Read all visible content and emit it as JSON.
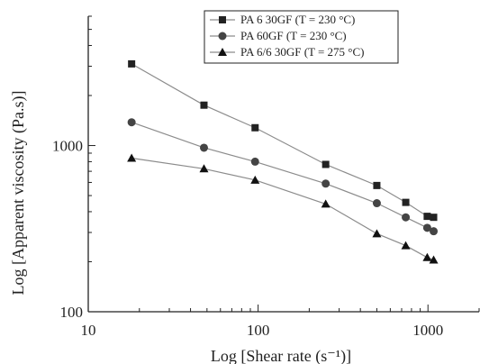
{
  "chart_data": {
    "type": "line",
    "xlabel": "Log [Shear rate (s⁻¹)]",
    "ylabel": "Log [Apparent viscosity (Pa.s)]",
    "x_scale": "log",
    "y_scale": "log",
    "xlim": [
      10,
      2000
    ],
    "ylim": [
      100,
      6000
    ],
    "x_ticks": [
      10,
      100,
      1000
    ],
    "x_tick_labels": [
      "10",
      "100",
      "1000"
    ],
    "y_ticks": [
      100,
      1000
    ],
    "y_tick_labels": [
      "100",
      "1000"
    ],
    "grid": false,
    "legend_position": "top-right",
    "series": [
      {
        "name": "PA 6 30GF (T = 230 °C)",
        "marker": "square",
        "color": "#222222",
        "x": [
          18,
          48,
          96,
          250,
          500,
          740,
          990,
          1080
        ],
        "y": [
          3100,
          1750,
          1280,
          770,
          575,
          455,
          375,
          370
        ]
      },
      {
        "name": "PA 60GF (T = 230 °C)",
        "marker": "circle",
        "color": "#444444",
        "x": [
          18,
          48,
          96,
          250,
          500,
          740,
          990,
          1080
        ],
        "y": [
          1380,
          970,
          800,
          590,
          450,
          370,
          320,
          305
        ]
      },
      {
        "name": "PA 6/6 30GF (T = 275 °C)",
        "marker": "triangle",
        "color": "#111111",
        "x": [
          18,
          48,
          96,
          250,
          500,
          740,
          990,
          1080
        ],
        "y": [
          840,
          725,
          620,
          445,
          295,
          250,
          212,
          205
        ]
      }
    ]
  }
}
